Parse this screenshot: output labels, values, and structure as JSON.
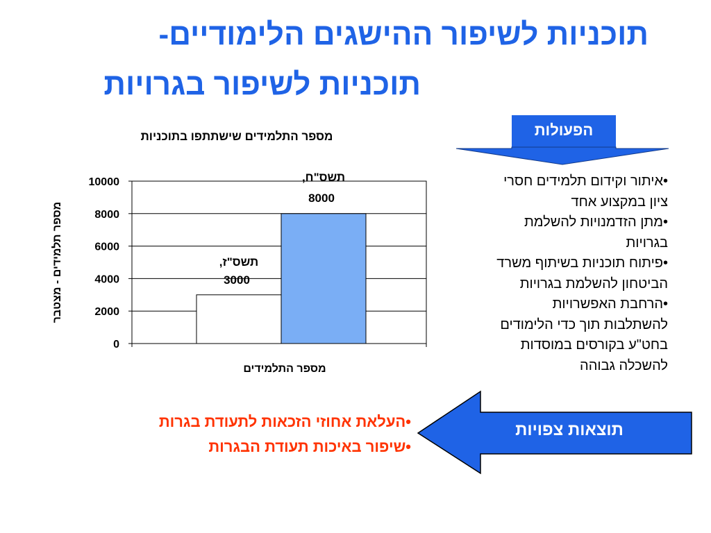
{
  "slide": {
    "title_line1": "תוכניות לשיפור ההישגים הלימודיים-",
    "title_line2": "תוכניות לשיפור בגרויות"
  },
  "actions": {
    "label": "הפעולות",
    "bullets": [
      "•איתור וקידום תלמידים חסרי",
      "ציון במקצוע אחד",
      "•מתן הזדמנויות להשלמת",
      "בגרויות",
      "•פיתוח תוכניות בשיתוף משרד",
      "הביטחון להשלמת בגרויות",
      "•הרחבת האפשרויות",
      "להשתלבות תוך כדי הלימודים",
      "בחט\"ע בקורסים במוסדות",
      "להשכלה גבוהה"
    ]
  },
  "results": {
    "label": "תוצאות צפויות",
    "items": [
      "•העלאת אחוזי הזכאות לתעודת בגרות",
      "•שיפור באיכות תעודת הבגרות"
    ]
  },
  "colors": {
    "title": "#1f63e6",
    "accent": "#1f63e6",
    "bar_2": "#7aaef5",
    "outcomes_text": "#ff3300"
  },
  "chart_data": {
    "type": "bar",
    "title": "מספר התלמידים שישתתפו בתוכניות",
    "xlabel": "מספר התלמידים",
    "ylabel": "מספר תלמידים - מצטבר",
    "ylim": [
      0,
      10000
    ],
    "yticks": [
      "10000",
      "8000",
      "6000",
      "4000",
      "2000",
      "0"
    ],
    "series": [
      {
        "values": [
          3000,
          8000
        ]
      }
    ],
    "data_labels": [
      {
        "line1": "תשס\"ז,",
        "line2": "3000"
      },
      {
        "line1": "תשס\"ח,",
        "line2": "8000"
      }
    ],
    "bar_colors": [
      "#ffffff",
      "#7aaef5"
    ],
    "grid": "horizontal"
  }
}
